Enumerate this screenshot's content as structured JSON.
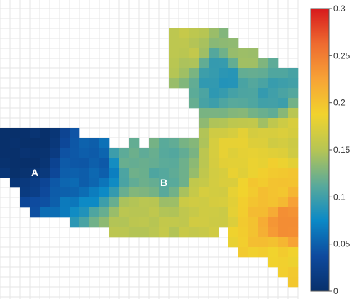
{
  "chart_data": {
    "type": "heatmap",
    "grid": {
      "cols": 30,
      "rows": 30,
      "gridlines": true
    },
    "colorbar": {
      "min": 0,
      "max": 0.3,
      "ticks": [
        {
          "value": 0,
          "label": "0"
        },
        {
          "value": 0.05,
          "label": "0.05"
        },
        {
          "value": 0.1,
          "label": "0.1"
        },
        {
          "value": 0.15,
          "label": "0.15"
        },
        {
          "value": 0.2,
          "label": "0.2"
        },
        {
          "value": 0.25,
          "label": "0.25"
        },
        {
          "value": 0.3,
          "label": "0.3"
        }
      ],
      "colorscale": [
        "#08306b",
        "#0e4a9e",
        "#0b89c6",
        "#5aaa9a",
        "#b6c554",
        "#f1d32d",
        "#f7a336",
        "#ee6b30",
        "#d7191c"
      ],
      "placement": "right"
    },
    "anchors": [
      {
        "col": 2,
        "row": 13,
        "value": 0.0
      },
      {
        "col": 9,
        "row": 15,
        "value": 0.05
      },
      {
        "col": 13,
        "row": 14,
        "value": 0.12
      },
      {
        "col": 16,
        "row": 16,
        "value": 0.11
      },
      {
        "col": 22,
        "row": 6,
        "value": 0.09
      },
      {
        "col": 27,
        "row": 8,
        "value": 0.1
      },
      {
        "col": 18,
        "row": 3,
        "value": 0.155
      },
      {
        "col": 24,
        "row": 4,
        "value": 0.14
      },
      {
        "col": 14,
        "row": 21,
        "value": 0.155
      },
      {
        "col": 20,
        "row": 19,
        "value": 0.165
      },
      {
        "col": 27,
        "row": 18,
        "value": 0.2
      },
      {
        "col": 29,
        "row": 21,
        "value": 0.24
      },
      {
        "col": 28,
        "row": 25,
        "value": 0.19
      },
      {
        "col": 29,
        "row": 12,
        "value": 0.17
      },
      {
        "col": 24,
        "row": 14,
        "value": 0.18
      }
    ],
    "labels": [
      {
        "text": "A",
        "col": 3,
        "row": 16
      },
      {
        "text": "B",
        "col": 16,
        "row": 17
      }
    ]
  }
}
